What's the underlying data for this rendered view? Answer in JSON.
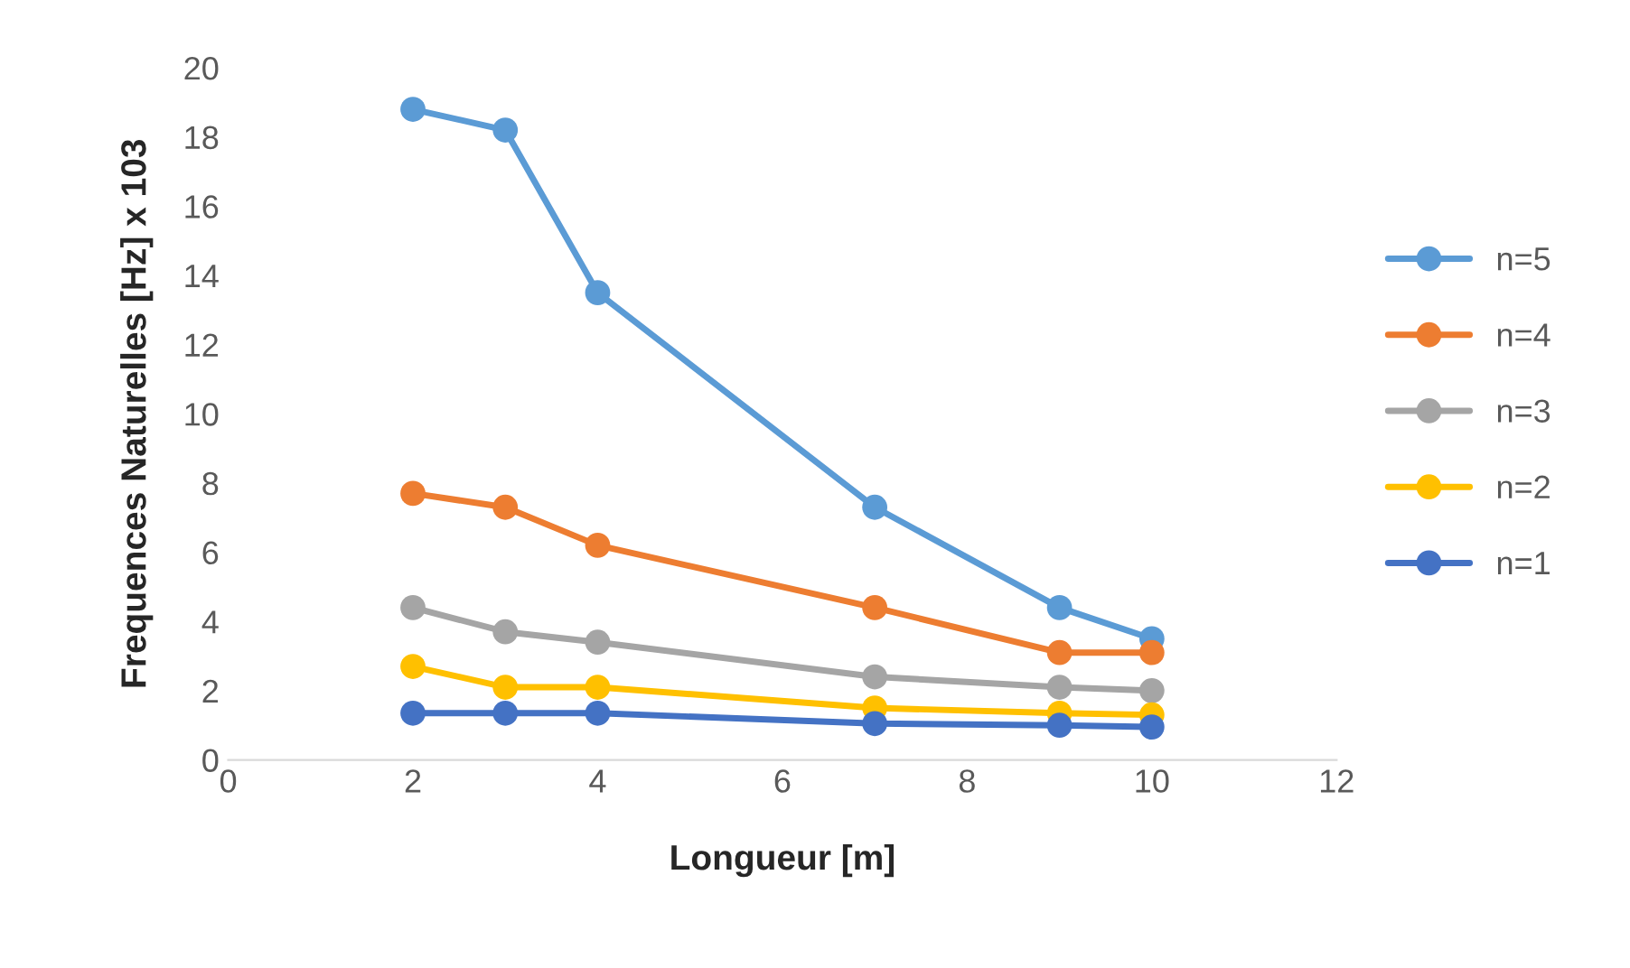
{
  "chart_data": {
    "type": "line",
    "xlabel": "Longueur [m]",
    "ylabel": "Frequences Naturelles [Hz] x 103",
    "x": [
      2,
      3,
      4,
      7,
      9,
      10
    ],
    "series": [
      {
        "name": "n=5",
        "color": "#5b9bd5",
        "values": [
          18.8,
          18.2,
          13.5,
          7.3,
          4.4,
          3.5
        ]
      },
      {
        "name": "n=4",
        "color": "#ed7d31",
        "values": [
          7.7,
          7.3,
          6.2,
          4.4,
          3.1,
          3.1
        ]
      },
      {
        "name": "n=3",
        "color": "#a5a5a5",
        "values": [
          4.4,
          3.7,
          3.4,
          2.4,
          2.1,
          2.0
        ]
      },
      {
        "name": "n=2",
        "color": "#ffc000",
        "values": [
          2.7,
          2.1,
          2.1,
          1.5,
          1.35,
          1.3
        ]
      },
      {
        "name": "n=1",
        "color": "#4472c4",
        "values": [
          1.35,
          1.35,
          1.35,
          1.05,
          1.0,
          0.95
        ]
      }
    ],
    "xlim": [
      0,
      12
    ],
    "xticks": [
      0,
      2,
      4,
      6,
      8,
      10,
      12
    ],
    "ylim": [
      0,
      20
    ],
    "yticks": [
      0,
      2,
      4,
      6,
      8,
      10,
      12,
      14,
      16,
      18,
      20
    ],
    "grid": false,
    "legend": "right",
    "marker": "circle",
    "line_style": "solid"
  }
}
